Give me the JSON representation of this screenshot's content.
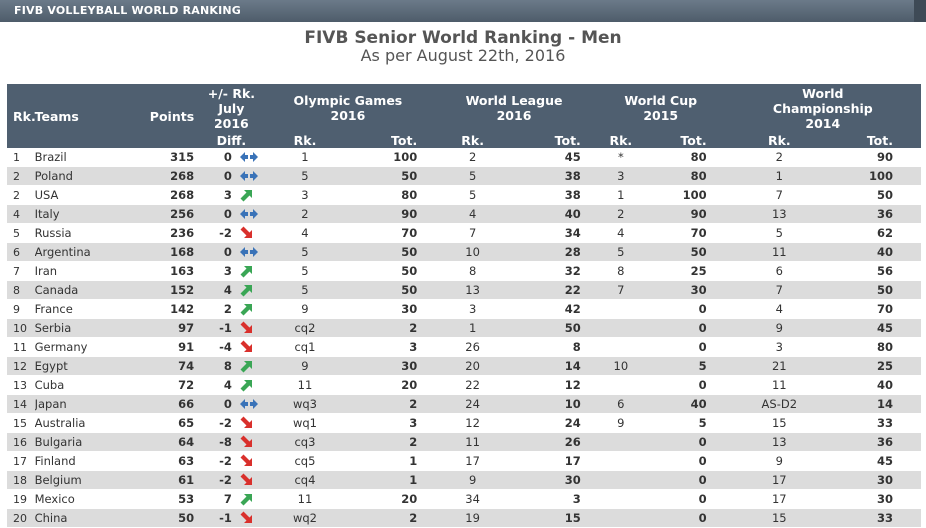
{
  "banner": {
    "title": "FIVB VOLLEYBALL WORLD RANKING"
  },
  "heading": {
    "title": "FIVB Senior World Ranking - Men",
    "subtitle": "As per August 22th, 2016"
  },
  "columns": {
    "rank": "Rk.",
    "teams": "Teams",
    "points": "Points",
    "diff_top": "+/- Rk.",
    "diff_mid": "July",
    "diff_year": "2016",
    "diff_sub": "Diff.",
    "og_line1": "Olympic Games",
    "og_line2": "2016",
    "wl_line1": "World League",
    "wl_line2": "2016",
    "wc_line1": "World Cup",
    "wc_line2": "2015",
    "wch_line1": "World",
    "wch_line2": "Championship",
    "wch_line3": "2014",
    "rk": "Rk.",
    "tot": "Tot."
  },
  "colors": {
    "header_bg": "#4f5f70",
    "row_alt": "#dcdcdc",
    "arrow_up": "#3aa655",
    "arrow_down": "#d9302c",
    "arrow_same": "#3a73b8"
  },
  "rows": [
    {
      "rank": "1",
      "team": "Brazil",
      "points": "315",
      "diff": "0",
      "trend": "same",
      "og_rk": "1",
      "og_tot": "100",
      "wl_rk": "2",
      "wl_tot": "45",
      "wc_rk": "*",
      "wc_tot": "80",
      "wch_rk": "2",
      "wch_tot": "90"
    },
    {
      "rank": "2",
      "team": "Poland",
      "points": "268",
      "diff": "0",
      "trend": "same",
      "og_rk": "5",
      "og_tot": "50",
      "wl_rk": "5",
      "wl_tot": "38",
      "wc_rk": "3",
      "wc_tot": "80",
      "wch_rk": "1",
      "wch_tot": "100"
    },
    {
      "rank": "2",
      "team": "USA",
      "points": "268",
      "diff": "3",
      "trend": "up",
      "og_rk": "3",
      "og_tot": "80",
      "wl_rk": "5",
      "wl_tot": "38",
      "wc_rk": "1",
      "wc_tot": "100",
      "wch_rk": "7",
      "wch_tot": "50"
    },
    {
      "rank": "4",
      "team": "Italy",
      "points": "256",
      "diff": "0",
      "trend": "same",
      "og_rk": "2",
      "og_tot": "90",
      "wl_rk": "4",
      "wl_tot": "40",
      "wc_rk": "2",
      "wc_tot": "90",
      "wch_rk": "13",
      "wch_tot": "36"
    },
    {
      "rank": "5",
      "team": "Russia",
      "points": "236",
      "diff": "-2",
      "trend": "down",
      "og_rk": "4",
      "og_tot": "70",
      "wl_rk": "7",
      "wl_tot": "34",
      "wc_rk": "4",
      "wc_tot": "70",
      "wch_rk": "5",
      "wch_tot": "62"
    },
    {
      "rank": "6",
      "team": "Argentina",
      "points": "168",
      "diff": "0",
      "trend": "same",
      "og_rk": "5",
      "og_tot": "50",
      "wl_rk": "10",
      "wl_tot": "28",
      "wc_rk": "5",
      "wc_tot": "50",
      "wch_rk": "11",
      "wch_tot": "40"
    },
    {
      "rank": "7",
      "team": "Iran",
      "points": "163",
      "diff": "3",
      "trend": "up",
      "og_rk": "5",
      "og_tot": "50",
      "wl_rk": "8",
      "wl_tot": "32",
      "wc_rk": "8",
      "wc_tot": "25",
      "wch_rk": "6",
      "wch_tot": "56"
    },
    {
      "rank": "8",
      "team": "Canada",
      "points": "152",
      "diff": "4",
      "trend": "up",
      "og_rk": "5",
      "og_tot": "50",
      "wl_rk": "13",
      "wl_tot": "22",
      "wc_rk": "7",
      "wc_tot": "30",
      "wch_rk": "7",
      "wch_tot": "50"
    },
    {
      "rank": "9",
      "team": "France",
      "points": "142",
      "diff": "2",
      "trend": "up",
      "og_rk": "9",
      "og_tot": "30",
      "wl_rk": "3",
      "wl_tot": "42",
      "wc_rk": "",
      "wc_tot": "0",
      "wch_rk": "4",
      "wch_tot": "70"
    },
    {
      "rank": "10",
      "team": "Serbia",
      "points": "97",
      "diff": "-1",
      "trend": "down",
      "og_rk": "cq2",
      "og_tot": "2",
      "wl_rk": "1",
      "wl_tot": "50",
      "wc_rk": "",
      "wc_tot": "0",
      "wch_rk": "9",
      "wch_tot": "45"
    },
    {
      "rank": "11",
      "team": "Germany",
      "points": "91",
      "diff": "-4",
      "trend": "down",
      "og_rk": "cq1",
      "og_tot": "3",
      "wl_rk": "26",
      "wl_tot": "8",
      "wc_rk": "",
      "wc_tot": "0",
      "wch_rk": "3",
      "wch_tot": "80"
    },
    {
      "rank": "12",
      "team": "Egypt",
      "points": "74",
      "diff": "8",
      "trend": "up",
      "og_rk": "9",
      "og_tot": "30",
      "wl_rk": "20",
      "wl_tot": "14",
      "wc_rk": "10",
      "wc_tot": "5",
      "wch_rk": "21",
      "wch_tot": "25"
    },
    {
      "rank": "13",
      "team": "Cuba",
      "points": "72",
      "diff": "4",
      "trend": "up",
      "og_rk": "11",
      "og_tot": "20",
      "wl_rk": "22",
      "wl_tot": "12",
      "wc_rk": "",
      "wc_tot": "0",
      "wch_rk": "11",
      "wch_tot": "40"
    },
    {
      "rank": "14",
      "team": "Japan",
      "points": "66",
      "diff": "0",
      "trend": "same",
      "og_rk": "wq3",
      "og_tot": "2",
      "wl_rk": "24",
      "wl_tot": "10",
      "wc_rk": "6",
      "wc_tot": "40",
      "wch_rk": "AS-D2",
      "wch_tot": "14"
    },
    {
      "rank": "15",
      "team": "Australia",
      "points": "65",
      "diff": "-2",
      "trend": "down",
      "og_rk": "wq1",
      "og_tot": "3",
      "wl_rk": "12",
      "wl_tot": "24",
      "wc_rk": "9",
      "wc_tot": "5",
      "wch_rk": "15",
      "wch_tot": "33"
    },
    {
      "rank": "16",
      "team": "Bulgaria",
      "points": "64",
      "diff": "-8",
      "trend": "down",
      "og_rk": "cq3",
      "og_tot": "2",
      "wl_rk": "11",
      "wl_tot": "26",
      "wc_rk": "",
      "wc_tot": "0",
      "wch_rk": "13",
      "wch_tot": "36"
    },
    {
      "rank": "17",
      "team": "Finland",
      "points": "63",
      "diff": "-2",
      "trend": "down",
      "og_rk": "cq5",
      "og_tot": "1",
      "wl_rk": "17",
      "wl_tot": "17",
      "wc_rk": "",
      "wc_tot": "0",
      "wch_rk": "9",
      "wch_tot": "45"
    },
    {
      "rank": "18",
      "team": "Belgium",
      "points": "61",
      "diff": "-2",
      "trend": "down",
      "og_rk": "cq4",
      "og_tot": "1",
      "wl_rk": "9",
      "wl_tot": "30",
      "wc_rk": "",
      "wc_tot": "0",
      "wch_rk": "17",
      "wch_tot": "30"
    },
    {
      "rank": "19",
      "team": "Mexico",
      "points": "53",
      "diff": "7",
      "trend": "up",
      "og_rk": "11",
      "og_tot": "20",
      "wl_rk": "34",
      "wl_tot": "3",
      "wc_rk": "",
      "wc_tot": "0",
      "wch_rk": "17",
      "wch_tot": "30"
    },
    {
      "rank": "20",
      "team": "China",
      "points": "50",
      "diff": "-1",
      "trend": "down",
      "og_rk": "wq2",
      "og_tot": "2",
      "wl_rk": "19",
      "wl_tot": "15",
      "wc_rk": "",
      "wc_tot": "0",
      "wch_rk": "15",
      "wch_tot": "33"
    }
  ]
}
